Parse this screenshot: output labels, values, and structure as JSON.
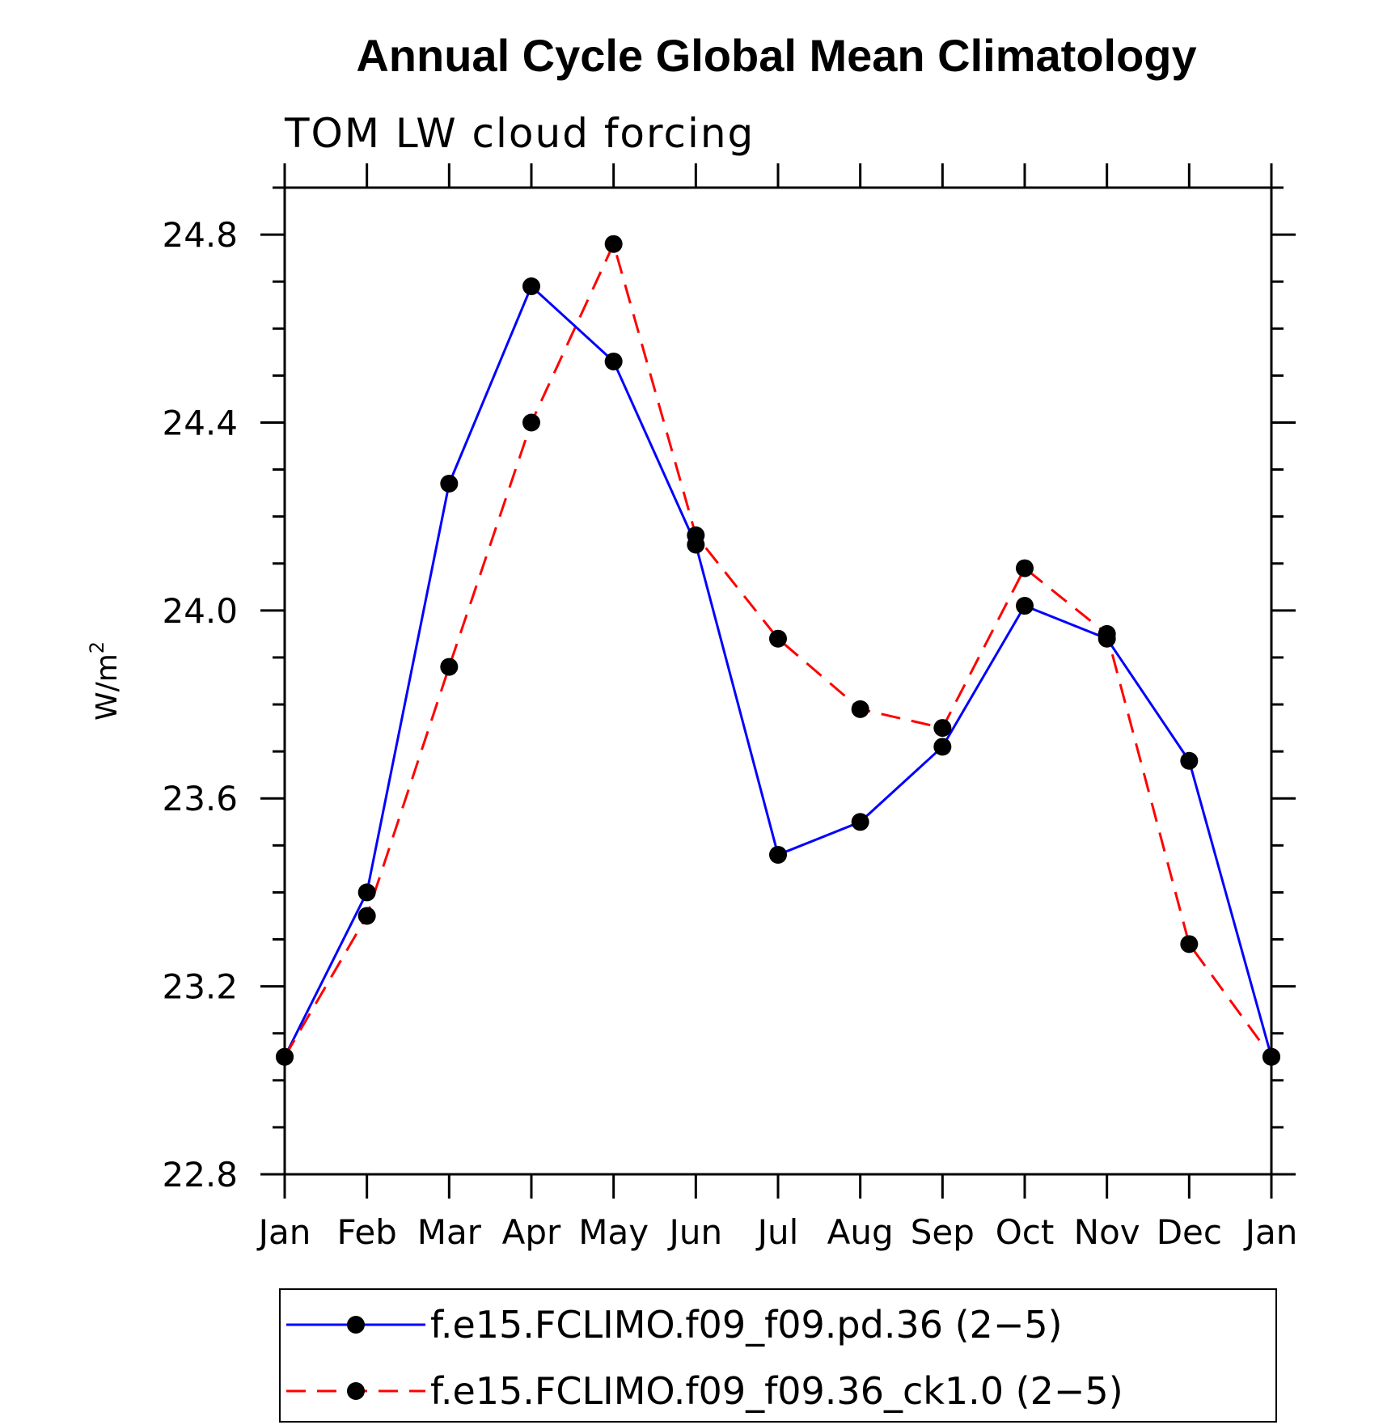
{
  "chart_data": {
    "type": "line",
    "title": "Annual Cycle Global Mean Climatology",
    "subtitle": "TOM LW cloud forcing",
    "ylabel": "W/m",
    "ylabel_sup": "2",
    "xlabel": "",
    "categories": [
      "Jan",
      "Feb",
      "Mar",
      "Apr",
      "May",
      "Jun",
      "Jul",
      "Aug",
      "Sep",
      "Oct",
      "Nov",
      "Dec",
      "Jan"
    ],
    "ylim": [
      22.8,
      24.9
    ],
    "yticks": [
      "22.8",
      "23.2",
      "23.6",
      "24.0",
      "24.4",
      "24.8"
    ],
    "grid": false,
    "legend_position": "bottom",
    "series": [
      {
        "name": "f.e15.FCLIMO.f09_f09.pd.36 (2−5)",
        "color": "#0000ff",
        "style": "solid",
        "marker": "filled-circle",
        "values": [
          23.05,
          23.4,
          24.27,
          24.69,
          24.53,
          24.14,
          23.48,
          23.55,
          23.71,
          24.01,
          23.94,
          23.68,
          23.05
        ]
      },
      {
        "name": "f.e15.FCLIMO.f09_f09.36_ck1.0 (2−5)",
        "color": "#ff0000",
        "style": "dashed",
        "marker": "filled-circle",
        "values": [
          23.05,
          23.35,
          23.88,
          24.4,
          24.78,
          24.16,
          23.94,
          23.79,
          23.75,
          24.09,
          23.95,
          23.29,
          23.05
        ]
      }
    ]
  }
}
